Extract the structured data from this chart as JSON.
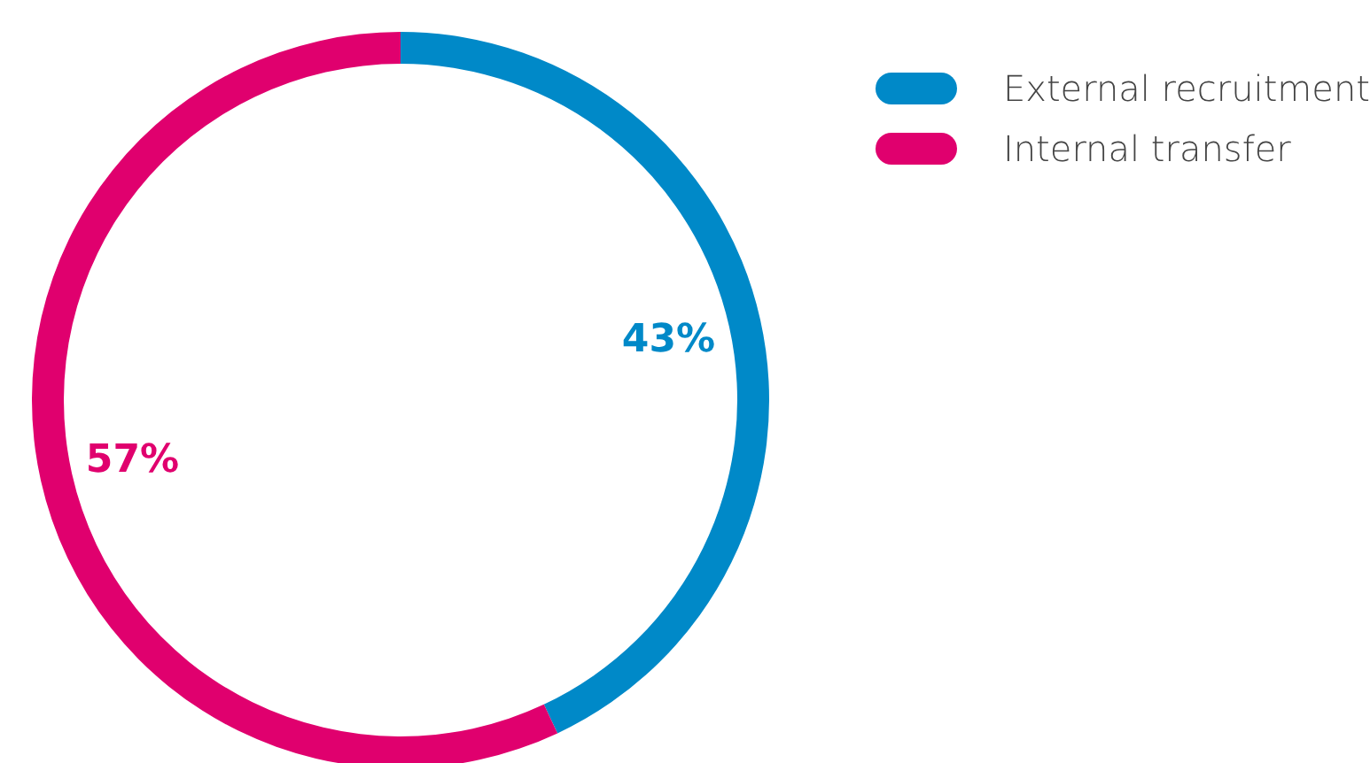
{
  "chart_data": {
    "type": "donut",
    "categories": [
      "External recruitment",
      "Internal transfer"
    ],
    "values": [
      43,
      57
    ],
    "colors": [
      "#0089c8",
      "#e0006e"
    ],
    "value_labels": [
      "43%",
      "57%"
    ],
    "legend": "top right"
  }
}
